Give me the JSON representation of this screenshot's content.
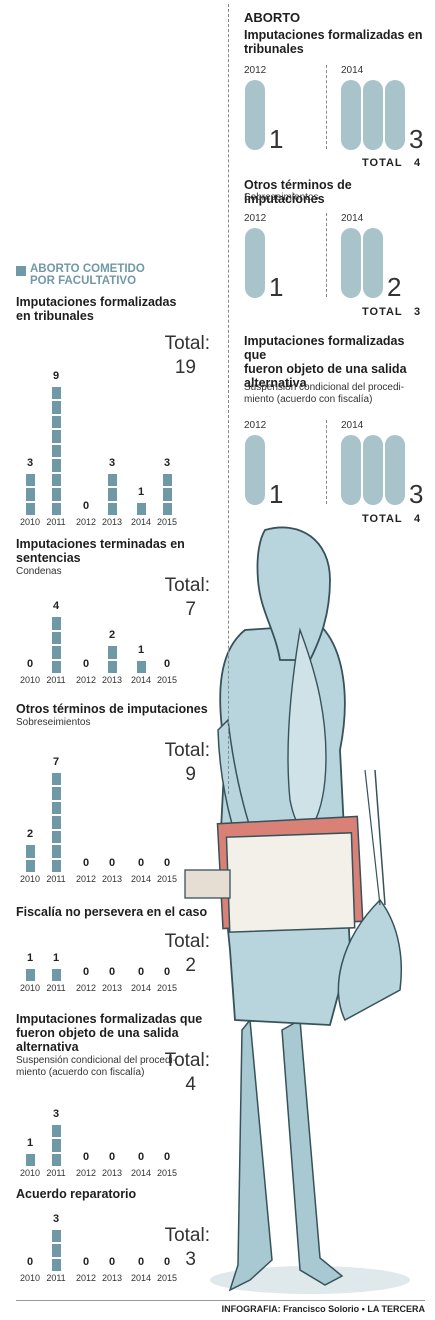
{
  "left": {
    "header": "ABORTO COMETIDO\nPOR FACULTATIVO",
    "total_word": "Total:"
  },
  "right": {
    "header": "ABORTO",
    "total_label": "TOTAL"
  },
  "footer": {
    "credit": "INFOGRAFIA: Francisco Solorio • LA TERCERA"
  },
  "colors": {
    "bar": "#6f99a6",
    "pill": "#a9c3ca",
    "header_square": "#6f99a6",
    "figure": "#b8d5dd"
  },
  "chart_data": [
    {
      "type": "bar",
      "title": "Imputaciones formalizadas\nen tribunales",
      "subtitle": "",
      "categories": [
        "2010",
        "2011",
        "2012",
        "2013",
        "2014",
        "2015"
      ],
      "values": [
        3,
        9,
        0,
        3,
        1,
        3
      ],
      "total": "19"
    },
    {
      "type": "bar",
      "title": "Imputaciones terminadas en\nsentencias",
      "subtitle": "Condenas",
      "categories": [
        "2010",
        "2011",
        "2012",
        "2013",
        "2014",
        "2015"
      ],
      "values": [
        0,
        4,
        0,
        2,
        1,
        0
      ],
      "total": "7"
    },
    {
      "type": "bar",
      "title": "Otros términos de imputaciones",
      "subtitle": "Sobreseimientos",
      "categories": [
        "2010",
        "2011",
        "2012",
        "2013",
        "2014",
        "2015"
      ],
      "values": [
        2,
        7,
        0,
        0,
        0,
        0
      ],
      "total": "9"
    },
    {
      "type": "bar",
      "title": "Fiscalía no persevera en el caso",
      "subtitle": "",
      "categories": [
        "2010",
        "2011",
        "2012",
        "2013",
        "2014",
        "2015"
      ],
      "values": [
        1,
        1,
        0,
        0,
        0,
        0
      ],
      "total": "2"
    },
    {
      "type": "bar",
      "title": "Imputaciones formalizadas que\nfueron objeto de una salida\nalternativa",
      "subtitle": "Suspensión condicional del procedi-\nmiento (acuerdo con fiscalía)",
      "categories": [
        "2010",
        "2011",
        "2012",
        "2013",
        "2014",
        "2015"
      ],
      "values": [
        1,
        3,
        0,
        0,
        0,
        0
      ],
      "total": "4"
    },
    {
      "type": "bar",
      "title": "Acuerdo reparatorio",
      "subtitle": "",
      "categories": [
        "2010",
        "2011",
        "2012",
        "2013",
        "2014",
        "2015"
      ],
      "values": [
        0,
        3,
        0,
        0,
        0,
        0
      ],
      "total": "3"
    },
    {
      "type": "bar",
      "title": "Imputaciones formalizadas en\ntribunales",
      "subtitle": "",
      "categories": [
        "2012",
        "2014"
      ],
      "values": [
        1,
        3
      ],
      "total": "4"
    },
    {
      "type": "bar",
      "title": "Otros términos de imputaciones",
      "subtitle": "Sobreseimientos",
      "categories": [
        "2012",
        "2014"
      ],
      "values": [
        1,
        2
      ],
      "total": "3"
    },
    {
      "type": "bar",
      "title": "Imputaciones formalizadas que\nfueron objeto de una salida\nalternativa",
      "subtitle": "Suspensión condicional del procedi-\nmiento (acuerdo con fiscalía)",
      "categories": [
        "2012",
        "2014"
      ],
      "values": [
        1,
        3
      ],
      "total": "4"
    }
  ]
}
